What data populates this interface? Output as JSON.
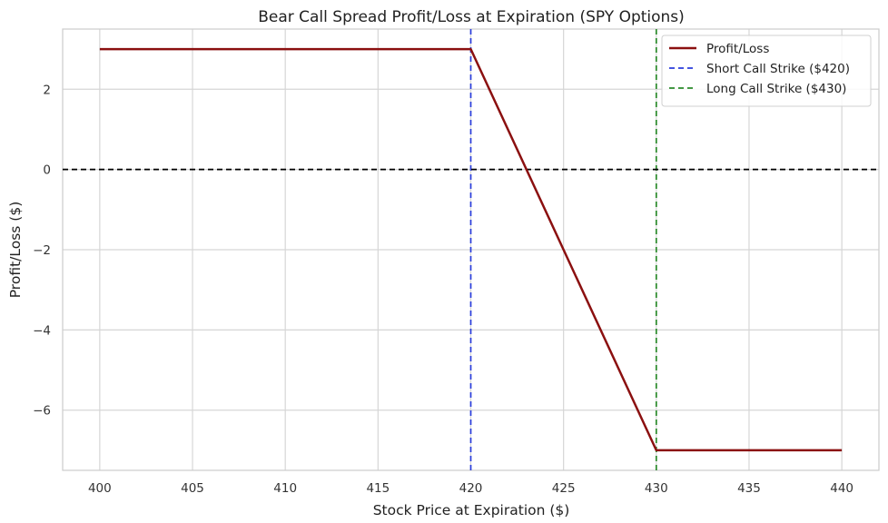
{
  "chart_data": {
    "type": "line",
    "title": "Bear Call Spread Profit/Loss at Expiration (SPY Options)",
    "xlabel": "Stock Price at Expiration ($)",
    "ylabel": "Profit/Loss ($)",
    "xlim": [
      398,
      442
    ],
    "ylim": [
      -7.5,
      3.5
    ],
    "xticks": [
      400,
      405,
      410,
      415,
      420,
      425,
      430,
      435,
      440
    ],
    "yticks": [
      -6,
      -4,
      -2,
      0,
      2
    ],
    "ytick_labels": [
      "−6",
      "−4",
      "−2",
      "0",
      "2"
    ],
    "grid": true,
    "legend_position": "top-right",
    "series": [
      {
        "name": "Profit/Loss",
        "color": "#8b1010",
        "style": "solid",
        "x": [
          400,
          420,
          430,
          440
        ],
        "y": [
          3,
          3,
          -7,
          -7
        ]
      }
    ],
    "reference_lines": [
      {
        "name": "Short Call Strike ($420)",
        "orientation": "vertical",
        "value": 420,
        "color": "#2a3ddb",
        "style": "dashed",
        "in_legend": true
      },
      {
        "name": "Long Call Strike ($430)",
        "orientation": "vertical",
        "value": 430,
        "color": "#2a8a2a",
        "style": "dashed",
        "in_legend": true
      },
      {
        "name": "Breakeven zero line",
        "orientation": "horizontal",
        "value": 0,
        "color": "#000000",
        "style": "dashed",
        "in_legend": false
      }
    ]
  }
}
